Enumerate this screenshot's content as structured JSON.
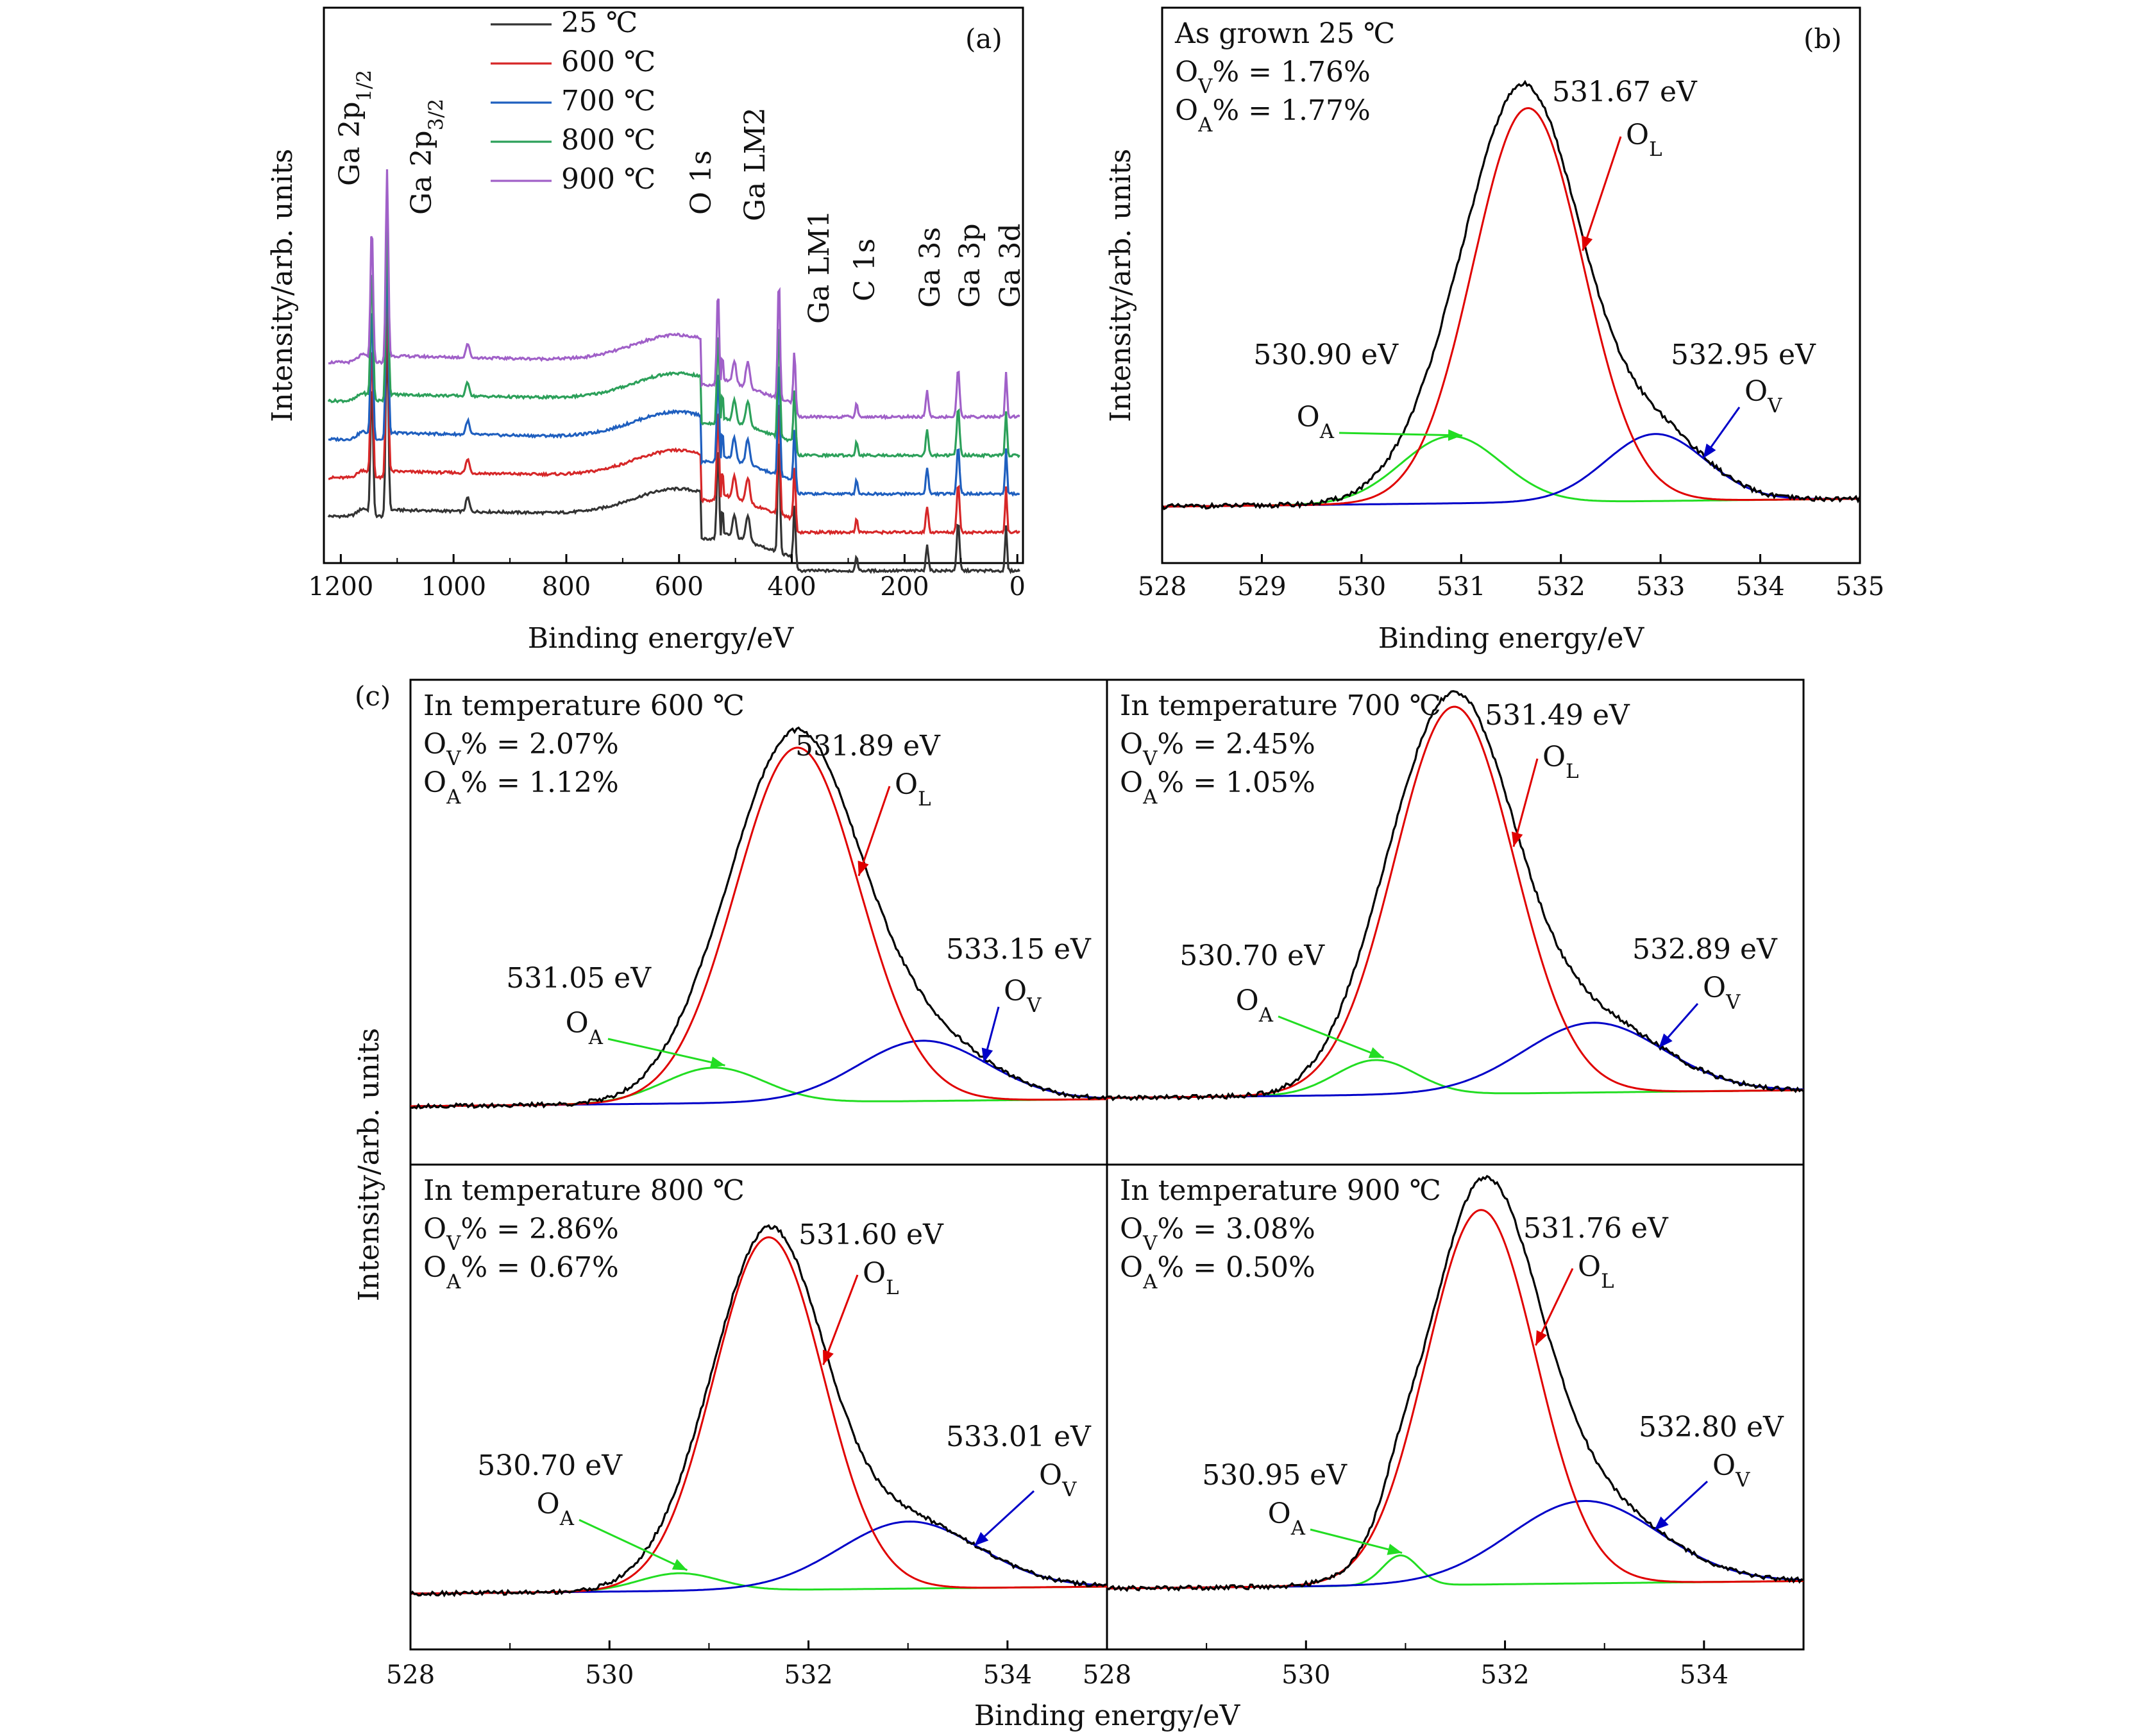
{
  "chart_data": [
    {
      "panel": "(a)",
      "type": "line",
      "xlabel": "Binding energy/eV",
      "ylabel": "Intensity/arb. units",
      "xlim": [
        1230,
        -10
      ],
      "x_reversed": true,
      "xticks": [
        1200,
        1000,
        800,
        600,
        400,
        200,
        0
      ],
      "y_ticks_shown": false,
      "legend_position": "top-left",
      "series": [
        {
          "name": "25 ℃",
          "color": "#333333",
          "offset": 0
        },
        {
          "name": "600 ℃",
          "color": "#d62728",
          "offset": 1
        },
        {
          "name": "700 ℃",
          "color": "#1f5fbf",
          "offset": 2
        },
        {
          "name": "800 ℃",
          "color": "#2ca05a",
          "offset": 3
        },
        {
          "name": "900 ℃",
          "color": "#a060c8",
          "offset": 4
        }
      ],
      "peak_labels": [
        {
          "label": "Ga 2p1/2",
          "x": 1145
        },
        {
          "label": "Ga 2p3/2",
          "x": 1118
        },
        {
          "label": "O 1s",
          "x": 531
        },
        {
          "label": "Ga LM2",
          "x": 423
        },
        {
          "label": "Ga LM1",
          "x": 395
        },
        {
          "label": "C 1s",
          "x": 285
        },
        {
          "label": "Ga 3s",
          "x": 160
        },
        {
          "label": "Ga 3p",
          "x": 105
        },
        {
          "label": "Ga 3d",
          "x": 20
        }
      ]
    },
    {
      "panel": "(b)",
      "type": "line",
      "title": "As grown 25 ℃",
      "xlabel": "Binding energy/eV",
      "ylabel": "Intensity/arb. units",
      "xlim": [
        528,
        535
      ],
      "xticks": [
        528,
        529,
        530,
        531,
        532,
        533,
        534,
        535
      ],
      "ov_text": "OV% = 1.76%",
      "oa_text": "OA% = 1.77%",
      "OL": {
        "label": "OL",
        "position": "531.67 eV",
        "center": 531.67,
        "height": 1.0,
        "sigma": 0.55
      },
      "OA": {
        "label": "OA",
        "position": "530.90 eV",
        "center": 530.9,
        "height": 0.17,
        "sigma": 0.5
      },
      "OV": {
        "label": "OV",
        "position": "532.95 eV",
        "center": 532.95,
        "height": 0.17,
        "sigma": 0.5
      },
      "colors": {
        "raw": "#000000",
        "OL": "#e00000",
        "OA": "#22dd22",
        "OV": "#0000c8"
      }
    },
    {
      "panel": "(c) 600",
      "type": "line",
      "title": "In temperature 600 ℃",
      "xlim": [
        528,
        535
      ],
      "xticks": [
        528,
        530,
        532,
        534
      ],
      "ov_text": "OV% = 2.07%",
      "oa_text": "OA% = 1.12%",
      "OL": {
        "label": "OL",
        "position": "531.89 eV",
        "center": 531.89,
        "height": 1.0,
        "sigma": 0.62
      },
      "OA": {
        "label": "OA",
        "position": "531.05 eV",
        "center": 531.05,
        "height": 0.1,
        "sigma": 0.5
      },
      "OV": {
        "label": "OV",
        "position": "533.15 eV",
        "center": 533.15,
        "height": 0.17,
        "sigma": 0.65
      }
    },
    {
      "panel": "(c) 700",
      "type": "line",
      "title": "In temperature 700 ℃",
      "xlim": [
        528,
        535
      ],
      "xticks": [
        528,
        530,
        532,
        534
      ],
      "ov_text": "OV% = 2.45%",
      "oa_text": "OA% = 1.05%",
      "OL": {
        "label": "OL",
        "position": "531.49 eV",
        "center": 531.49,
        "height": 1.0,
        "sigma": 0.6
      },
      "OA": {
        "label": "OA",
        "position": "530.70 eV",
        "center": 530.7,
        "height": 0.09,
        "sigma": 0.4
      },
      "OV": {
        "label": "OV",
        "position": "532.89 eV",
        "center": 532.89,
        "height": 0.18,
        "sigma": 0.7
      }
    },
    {
      "panel": "(c) 800",
      "type": "line",
      "title": "In temperature 800 ℃",
      "xlim": [
        528,
        535
      ],
      "xticks": [
        528,
        530,
        532,
        534
      ],
      "ov_text": "OV% = 2.86%",
      "oa_text": "OA% = 0.67%",
      "OL": {
        "label": "OL",
        "position": "531.60 eV",
        "center": 531.6,
        "height": 1.0,
        "sigma": 0.55
      },
      "OA": {
        "label": "OA",
        "position": "530.70 eV",
        "center": 530.7,
        "height": 0.05,
        "sigma": 0.4
      },
      "OV": {
        "label": "OV",
        "position": "533.01 eV",
        "center": 533.01,
        "height": 0.19,
        "sigma": 0.7
      }
    },
    {
      "panel": "(c) 900",
      "type": "line",
      "title": "In temperature 900 ℃",
      "xlim": [
        528,
        535
      ],
      "xticks": [
        528,
        530,
        532,
        534
      ],
      "ov_text": "OV% = 3.08%",
      "oa_text": "OA% = 0.50%",
      "OL": {
        "label": "OL",
        "position": "531.76 eV",
        "center": 531.76,
        "height": 1.0,
        "sigma": 0.55
      },
      "OA": {
        "label": "OA",
        "position": "530.95 eV",
        "center": 530.95,
        "height": 0.08,
        "sigma": 0.18
      },
      "OV": {
        "label": "OV",
        "position": "532.80 eV",
        "center": 532.8,
        "height": 0.22,
        "sigma": 0.75
      }
    }
  ],
  "labels": {
    "panel_a": "(a)",
    "panel_b": "(b)",
    "panel_c": "(c)",
    "xlabel": "Binding energy/eV",
    "ylabel": "Intensity/arb. units"
  }
}
